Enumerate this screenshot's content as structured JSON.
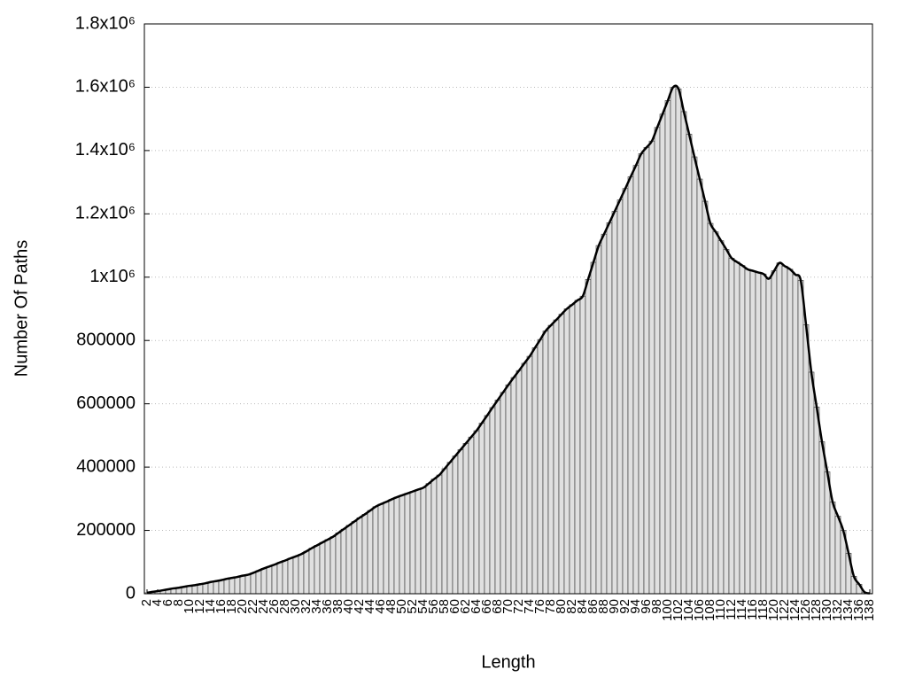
{
  "chart_data": {
    "type": "bar",
    "xlabel": "Length",
    "ylabel": "Number Of Paths",
    "x": [
      2,
      3,
      4,
      5,
      6,
      7,
      8,
      9,
      10,
      11,
      12,
      13,
      14,
      15,
      16,
      17,
      18,
      19,
      20,
      21,
      22,
      23,
      24,
      25,
      26,
      27,
      28,
      29,
      30,
      31,
      32,
      33,
      34,
      35,
      36,
      37,
      38,
      39,
      40,
      41,
      42,
      43,
      44,
      45,
      46,
      47,
      48,
      49,
      50,
      51,
      52,
      53,
      54,
      55,
      56,
      57,
      58,
      59,
      60,
      61,
      62,
      63,
      64,
      65,
      66,
      67,
      68,
      69,
      70,
      71,
      72,
      73,
      74,
      75,
      76,
      77,
      78,
      79,
      80,
      81,
      82,
      83,
      84,
      85,
      86,
      87,
      88,
      89,
      90,
      91,
      92,
      93,
      94,
      95,
      96,
      97,
      98,
      99,
      100,
      101,
      102,
      103,
      104,
      105,
      106,
      107,
      108,
      109,
      110,
      111,
      112,
      113,
      114,
      115,
      116,
      117,
      118,
      119,
      120,
      121,
      122,
      123,
      124,
      125,
      126,
      127,
      128,
      129,
      130,
      131,
      132,
      133,
      134,
      135,
      136,
      137,
      138
    ],
    "values": [
      3000,
      6000,
      8000,
      11000,
      14000,
      17000,
      19000,
      22000,
      25000,
      27000,
      30000,
      33000,
      37000,
      40000,
      43000,
      47000,
      50000,
      53000,
      57000,
      60000,
      66000,
      73000,
      80000,
      86000,
      92000,
      99000,
      105000,
      112000,
      118000,
      125000,
      134000,
      144000,
      153000,
      162000,
      171000,
      180000,
      192000,
      204000,
      216000,
      228000,
      240000,
      251000,
      263000,
      275000,
      283000,
      290000,
      298000,
      305000,
      311000,
      317000,
      323000,
      329000,
      335000,
      348000,
      362000,
      375000,
      395000,
      415000,
      435000,
      455000,
      475000,
      495000,
      515000,
      539000,
      563000,
      588000,
      612000,
      636000,
      660000,
      683000,
      705000,
      728000,
      750000,
      777000,
      803000,
      830000,
      848000,
      865000,
      883000,
      900000,
      913000,
      927000,
      940000,
      993000,
      1047000,
      1100000,
      1136000,
      1172000,
      1208000,
      1244000,
      1280000,
      1317000,
      1353000,
      1390000,
      1410000,
      1430000,
      1473000,
      1515000,
      1558000,
      1600000,
      1595000,
      1523000,
      1452000,
      1380000,
      1310000,
      1240000,
      1170000,
      1143000,
      1115000,
      1088000,
      1060000,
      1048000,
      1037000,
      1025000,
      1020000,
      1015000,
      1010000,
      995000,
      1020000,
      1045000,
      1035000,
      1025000,
      1008000,
      990000,
      850000,
      700000,
      590000,
      480000,
      385000,
      290000,
      245000,
      200000,
      128000,
      55000,
      30000,
      5000,
      1000
    ],
    "color": "#e0e0e0",
    "line_color": "#000000",
    "outline": true,
    "xlim": [
      1.5,
      138.5
    ],
    "xticks": [
      2,
      4,
      6,
      8,
      10,
      12,
      14,
      16,
      18,
      20,
      22,
      24,
      26,
      28,
      30,
      32,
      34,
      36,
      38,
      40,
      42,
      44,
      46,
      48,
      50,
      52,
      54,
      56,
      58,
      60,
      62,
      64,
      66,
      68,
      70,
      72,
      74,
      76,
      78,
      80,
      82,
      84,
      86,
      88,
      90,
      92,
      94,
      96,
      98,
      100,
      102,
      104,
      106,
      108,
      110,
      112,
      114,
      116,
      118,
      120,
      122,
      124,
      126,
      128,
      130,
      132,
      134,
      136,
      138
    ],
    "ylim": [
      0,
      1800000
    ],
    "yticks": [
      0,
      200000,
      400000,
      600000,
      800000,
      {
        "value": 1000000,
        "label": "1x10⁶"
      },
      {
        "value": 1200000,
        "label": "1.2x10⁶"
      },
      {
        "value": 1400000,
        "label": "1.4x10⁶"
      },
      {
        "value": 1600000,
        "label": "1.6x10⁶"
      },
      {
        "value": 1800000,
        "label": "1.8x10⁶"
      }
    ],
    "grid": true
  }
}
